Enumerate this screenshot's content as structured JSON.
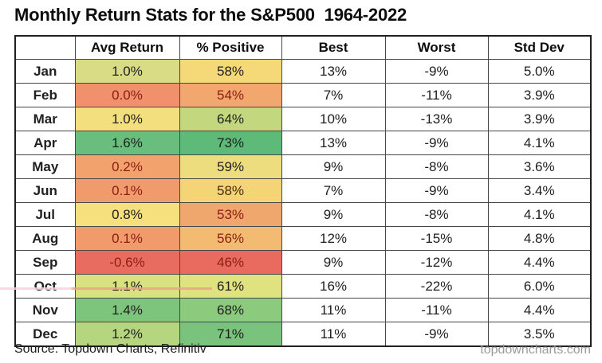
{
  "title": "Monthly Return Stats for the S&P500  1964-2022",
  "table": {
    "columns": [
      "",
      "Avg Return",
      "% Positive",
      "Best",
      "Worst",
      "Std Dev"
    ],
    "rows": [
      {
        "month": "Jan",
        "avg_return": "1.0%",
        "pct_positive": "58%",
        "best": "13%",
        "worst": "-9%",
        "std_dev": "5.0%",
        "avg_bg": "#d9dc85",
        "avg_fg": "#202020",
        "pos_bg": "#f5d877",
        "pos_fg": "#202020"
      },
      {
        "month": "Feb",
        "avg_return": "0.0%",
        "pct_positive": "54%",
        "best": "7%",
        "worst": "-11%",
        "std_dev": "3.9%",
        "avg_bg": "#f0906c",
        "avg_fg": "#8c1d12",
        "pos_bg": "#f2a76e",
        "pos_fg": "#8c1d12"
      },
      {
        "month": "Mar",
        "avg_return": "1.0%",
        "pct_positive": "64%",
        "best": "10%",
        "worst": "-13%",
        "std_dev": "3.9%",
        "avg_bg": "#f4df7e",
        "avg_fg": "#202020",
        "pos_bg": "#c3d77f",
        "pos_fg": "#202020"
      },
      {
        "month": "Apr",
        "avg_return": "1.6%",
        "pct_positive": "73%",
        "best": "13%",
        "worst": "-9%",
        "std_dev": "4.1%",
        "avg_bg": "#69bd7d",
        "avg_fg": "#1b1f1b",
        "pos_bg": "#5eba78",
        "pos_fg": "#1b1f1b"
      },
      {
        "month": "May",
        "avg_return": "0.2%",
        "pct_positive": "59%",
        "best": "9%",
        "worst": "-8%",
        "std_dev": "3.6%",
        "avg_bg": "#f2a36d",
        "avg_fg": "#8c1d12",
        "pos_bg": "#eedd7e",
        "pos_fg": "#202020"
      },
      {
        "month": "Jun",
        "avg_return": "0.1%",
        "pct_positive": "58%",
        "best": "7%",
        "worst": "-9%",
        "std_dev": "3.4%",
        "avg_bg": "#f19b6d",
        "avg_fg": "#8c1d12",
        "pos_bg": "#f3d575",
        "pos_fg": "#4a2a10"
      },
      {
        "month": "Jul",
        "avg_return": "0.8%",
        "pct_positive": "53%",
        "best": "9%",
        "worst": "-8%",
        "std_dev": "4.1%",
        "avg_bg": "#f6e07e",
        "avg_fg": "#202020",
        "pos_bg": "#efa76e",
        "pos_fg": "#8c1d12"
      },
      {
        "month": "Aug",
        "avg_return": "0.1%",
        "pct_positive": "56%",
        "best": "12%",
        "worst": "-15%",
        "std_dev": "4.8%",
        "avg_bg": "#f19a6c",
        "avg_fg": "#8c1d12",
        "pos_bg": "#f2bb71",
        "pos_fg": "#8c1d12"
      },
      {
        "month": "Sep",
        "avg_return": "-0.6%",
        "pct_positive": "46%",
        "best": "9%",
        "worst": "-12%",
        "std_dev": "4.4%",
        "avg_bg": "#e96c61",
        "avg_fg": "#8c1d12",
        "pos_bg": "#e96b60",
        "pos_fg": "#8c1d12"
      },
      {
        "month": "Oct",
        "avg_return": "1.1%",
        "pct_positive": "61%",
        "best": "16%",
        "worst": "-22%",
        "std_dev": "6.0%",
        "avg_bg": "#dae180",
        "avg_fg": "#202020",
        "pos_bg": "#dfe27e",
        "pos_fg": "#202020"
      },
      {
        "month": "Nov",
        "avg_return": "1.4%",
        "pct_positive": "68%",
        "best": "11%",
        "worst": "-11%",
        "std_dev": "4.4%",
        "avg_bg": "#7dc57c",
        "avg_fg": "#1b1f1b",
        "pos_bg": "#8cca7e",
        "pos_fg": "#1b1f1b"
      },
      {
        "month": "Dec",
        "avg_return": "1.2%",
        "pct_positive": "71%",
        "best": "11%",
        "worst": "-9%",
        "std_dev": "3.5%",
        "avg_bg": "#b5d67e",
        "avg_fg": "#202020",
        "pos_bg": "#79c37d",
        "pos_fg": "#1b1f1b"
      }
    ]
  },
  "footer": {
    "source": "Source: Topdown Charts, Refinitiv",
    "website": "topdowncharts.com"
  },
  "colors": {
    "heat_red": "#e96c61",
    "heat_yellow": "#f5de7d",
    "heat_green": "#5eba78",
    "border": "#474747"
  },
  "chart_data": {
    "type": "table",
    "title": "Monthly Return Stats for the S&P500  1964-2022",
    "categories": [
      "Jan",
      "Feb",
      "Mar",
      "Apr",
      "May",
      "Jun",
      "Jul",
      "Aug",
      "Sep",
      "Oct",
      "Nov",
      "Dec"
    ],
    "series": [
      {
        "name": "Avg Return",
        "unit": "%",
        "values": [
          1.0,
          0.0,
          1.0,
          1.6,
          0.2,
          0.1,
          0.8,
          0.1,
          -0.6,
          1.1,
          1.4,
          1.2
        ]
      },
      {
        "name": "% Positive",
        "unit": "%",
        "values": [
          58,
          54,
          64,
          73,
          59,
          58,
          53,
          56,
          46,
          61,
          68,
          71
        ]
      },
      {
        "name": "Best",
        "unit": "%",
        "values": [
          13,
          7,
          10,
          13,
          9,
          7,
          9,
          12,
          9,
          16,
          11,
          11
        ]
      },
      {
        "name": "Worst",
        "unit": "%",
        "values": [
          -9,
          -11,
          -13,
          -9,
          -8,
          -9,
          -8,
          -15,
          -12,
          -22,
          -11,
          -9
        ]
      },
      {
        "name": "Std Dev",
        "unit": "%",
        "values": [
          5.0,
          3.9,
          3.9,
          4.1,
          3.6,
          3.4,
          4.1,
          4.8,
          4.4,
          6.0,
          4.4,
          3.5
        ]
      }
    ],
    "heatmap_columns": [
      "Avg Return",
      "% Positive"
    ],
    "heatmap_scale": "red-yellow-green",
    "source": "Topdown Charts, Refinitiv"
  }
}
